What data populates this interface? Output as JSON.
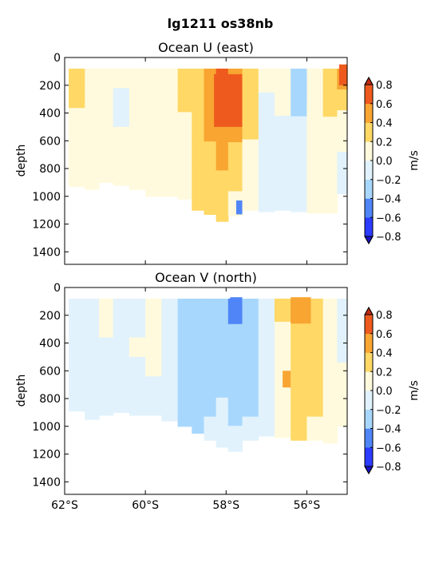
{
  "suptitle": "lg1211 os38nb",
  "colors": {
    "levels": [
      "#2b3bff",
      "#4f85f7",
      "#a8d7fd",
      "#e1f2fc",
      "#fffadd",
      "#ffd866",
      "#f8a532",
      "#ee5a1e"
    ],
    "under": "#1a12c8",
    "over": "#c22a12",
    "background": "#ffffff"
  },
  "chart_data": [
    {
      "type": "heatmap",
      "title": "Ocean U (east)",
      "xlabel": "",
      "ylabel": "depth",
      "x_ticks": [],
      "x_range_deg_south": [
        62,
        55
      ],
      "ylim": [
        1490,
        0
      ],
      "y_ticks": [
        "0",
        "200",
        "400",
        "600",
        "800",
        "1000",
        "1200",
        "1400"
      ],
      "colorbar": {
        "label": "m/s",
        "levels": [
          -0.8,
          -0.6,
          -0.4,
          -0.2,
          0.0,
          0.2,
          0.4,
          0.6,
          0.8
        ],
        "tick_labels": [
          "−0.8",
          "−0.6",
          "−0.4",
          "−0.2",
          "0.0",
          "0.2",
          "0.4",
          "0.6",
          "0.8"
        ],
        "extend": "both"
      },
      "columns": [
        {
          "lat": -61.7,
          "values": [
            0.3,
            0.3,
            0.1,
            0.1,
            0.1,
            0.1
          ],
          "bottom": 930
        },
        {
          "lat": -61.3,
          "values": [
            0.1,
            0.1,
            0.1,
            0.1,
            0.1,
            0.1
          ],
          "bottom": 950
        },
        {
          "lat": -61.0,
          "values": [
            0.1,
            0.1,
            0.1,
            0.1,
            0.1,
            0.1
          ],
          "bottom": 900
        },
        {
          "lat": -60.6,
          "values": [
            0.1,
            -0.1,
            -0.1,
            0.1,
            0.1,
            0.1
          ],
          "bottom": 920
        },
        {
          "lat": -60.2,
          "values": [
            0.1,
            0.1,
            0.1,
            0.1,
            0.1,
            0.1
          ],
          "bottom": 950
        },
        {
          "lat": -59.8,
          "values": [
            0.1,
            0.1,
            0.1,
            0.1,
            0.1,
            0.1
          ],
          "bottom": 1000
        },
        {
          "lat": -59.4,
          "values": [
            0.1,
            0.1,
            0.1,
            0.1,
            0.1,
            0.1
          ],
          "bottom": 1000
        },
        {
          "lat": -59.0,
          "values": [
            0.3,
            0.3,
            0.1,
            0.1,
            0.1,
            0.1
          ],
          "bottom": 1020
        },
        {
          "lat": -58.7,
          "values": [
            0.3,
            0.3,
            0.3,
            0.3,
            0.3,
            0.3
          ],
          "bottom": 1100
        },
        {
          "lat": -58.4,
          "values": [
            0.5,
            0.5,
            0.5,
            0.3,
            0.3,
            0.3
          ],
          "bottom": 1130
        },
        {
          "lat": -58.1,
          "values": [
            0.7,
            0.7,
            0.5,
            0.5,
            0.3,
            0.3
          ],
          "bottom": 1180
        },
        {
          "lat": -57.8,
          "values": [
            0.5,
            0.5,
            0.5,
            0.3,
            0.3,
            0.1
          ],
          "bottom": 1140
        },
        {
          "lat": -57.4,
          "values": [
            0.3,
            0.3,
            0.3,
            0.1,
            0.1,
            0.1
          ],
          "bottom": 1100
        },
        {
          "lat": -57.0,
          "values": [
            0.1,
            -0.1,
            -0.1,
            -0.1,
            -0.1,
            -0.1
          ],
          "bottom": 1110
        },
        {
          "lat": -56.6,
          "values": [
            0.1,
            0.1,
            -0.1,
            -0.1,
            -0.1,
            -0.1
          ],
          "bottom": 1100
        },
        {
          "lat": -56.2,
          "values": [
            -0.3,
            -0.3,
            -0.1,
            -0.1,
            -0.1,
            -0.1
          ],
          "bottom": 1110
        },
        {
          "lat": -55.8,
          "values": [
            0.1,
            0.1,
            0.1,
            0.1,
            0.1,
            0.1
          ],
          "bottom": 1120
        },
        {
          "lat": -55.4,
          "values": [
            0.3,
            0.3,
            0.1,
            0.1,
            0.1,
            0.1
          ],
          "bottom": 1120
        },
        {
          "lat": -55.1,
          "values": [
            0.5,
            0.3,
            0.1,
            0.1,
            -0.1,
            -0.1
          ],
          "bottom": 980
        }
      ],
      "highlights": [
        {
          "lat_from": -58.3,
          "lat_to": -57.6,
          "depth_from": 120,
          "depth_to": 500,
          "value": 0.7
        },
        {
          "lat_from": -56.3,
          "lat_to": -56.0,
          "depth_from": 120,
          "depth_to": 320,
          "value": -0.3
        },
        {
          "lat_from": -57.75,
          "lat_to": -57.6,
          "depth_from": 1030,
          "depth_to": 1130,
          "value": -0.5
        },
        {
          "lat_from": -55.2,
          "lat_to": -55.0,
          "depth_from": 50,
          "depth_to": 200,
          "value": 0.7
        }
      ]
    },
    {
      "type": "heatmap",
      "title": "Ocean V (north)",
      "xlabel": "",
      "ylabel": "depth",
      "x_ticks": [
        "62°S",
        "60°S",
        "58°S",
        "56°S"
      ],
      "x_range_deg_south": [
        62,
        55
      ],
      "ylim": [
        1490,
        0
      ],
      "y_ticks": [
        "0",
        "200",
        "400",
        "600",
        "800",
        "1000",
        "1200",
        "1400"
      ],
      "colorbar": {
        "label": "m/s",
        "levels": [
          -0.8,
          -0.6,
          -0.4,
          -0.2,
          0.0,
          0.2,
          0.4,
          0.6,
          0.8
        ],
        "tick_labels": [
          "−0.8",
          "−0.6",
          "−0.4",
          "−0.2",
          "0.0",
          "0.2",
          "0.4",
          "0.6",
          "0.8"
        ],
        "extend": "both"
      },
      "columns": [
        {
          "lat": -61.7,
          "values": [
            -0.1,
            -0.1,
            -0.1,
            -0.1,
            -0.1,
            -0.1
          ],
          "bottom": 890
        },
        {
          "lat": -61.3,
          "values": [
            -0.1,
            -0.1,
            -0.1,
            -0.1,
            -0.1,
            -0.1
          ],
          "bottom": 950
        },
        {
          "lat": -61.0,
          "values": [
            0.1,
            0.1,
            -0.1,
            -0.1,
            -0.1,
            -0.1
          ],
          "bottom": 920
        },
        {
          "lat": -60.6,
          "values": [
            -0.1,
            -0.1,
            -0.1,
            -0.1,
            -0.1,
            -0.1
          ],
          "bottom": 900
        },
        {
          "lat": -60.2,
          "values": [
            -0.1,
            -0.1,
            0.1,
            -0.1,
            -0.1,
            -0.1
          ],
          "bottom": 920
        },
        {
          "lat": -59.8,
          "values": [
            0.1,
            0.1,
            0.1,
            0.1,
            -0.1,
            -0.1
          ],
          "bottom": 920
        },
        {
          "lat": -59.4,
          "values": [
            -0.1,
            -0.1,
            -0.1,
            -0.1,
            -0.1,
            -0.1
          ],
          "bottom": 960
        },
        {
          "lat": -59.0,
          "values": [
            -0.3,
            -0.3,
            -0.3,
            -0.3,
            -0.3,
            -0.3
          ],
          "bottom": 1000
        },
        {
          "lat": -58.7,
          "values": [
            -0.3,
            -0.3,
            -0.3,
            -0.3,
            -0.3,
            -0.3
          ],
          "bottom": 1050
        },
        {
          "lat": -58.4,
          "values": [
            -0.3,
            -0.3,
            -0.3,
            -0.3,
            -0.3,
            -0.1
          ],
          "bottom": 1100
        },
        {
          "lat": -58.1,
          "values": [
            -0.3,
            -0.3,
            -0.3,
            -0.3,
            -0.1,
            -0.1
          ],
          "bottom": 1150
        },
        {
          "lat": -57.8,
          "values": [
            -0.5,
            -0.3,
            -0.3,
            -0.3,
            -0.3,
            -0.1
          ],
          "bottom": 1180
        },
        {
          "lat": -57.4,
          "values": [
            -0.3,
            -0.3,
            -0.3,
            -0.3,
            -0.3,
            -0.1
          ],
          "bottom": 1100
        },
        {
          "lat": -57.0,
          "values": [
            -0.1,
            -0.1,
            -0.1,
            -0.1,
            -0.1,
            -0.1
          ],
          "bottom": 1070
        },
        {
          "lat": -56.6,
          "values": [
            0.3,
            0.1,
            0.1,
            0.1,
            0.1,
            0.1
          ],
          "bottom": 1080
        },
        {
          "lat": -56.2,
          "values": [
            0.5,
            0.3,
            0.3,
            0.3,
            0.3,
            0.3
          ],
          "bottom": 1100
        },
        {
          "lat": -55.8,
          "values": [
            0.3,
            0.3,
            0.3,
            0.3,
            0.3,
            0.1
          ],
          "bottom": 1100
        },
        {
          "lat": -55.4,
          "values": [
            0.1,
            0.1,
            0.1,
            0.1,
            0.1,
            0.1
          ],
          "bottom": 1120
        },
        {
          "lat": -55.1,
          "values": [
            -0.1,
            -0.1,
            -0.1,
            0.1,
            0.1,
            0.1
          ],
          "bottom": 1000
        }
      ],
      "highlights": [
        {
          "lat_from": -57.9,
          "lat_to": -57.6,
          "depth_from": 70,
          "depth_to": 220,
          "value": -0.5
        },
        {
          "lat_from": -56.4,
          "lat_to": -55.9,
          "depth_from": 70,
          "depth_to": 260,
          "value": 0.5
        },
        {
          "lat_from": -56.6,
          "lat_to": -56.4,
          "depth_from": 600,
          "depth_to": 720,
          "value": 0.5
        }
      ]
    }
  ]
}
